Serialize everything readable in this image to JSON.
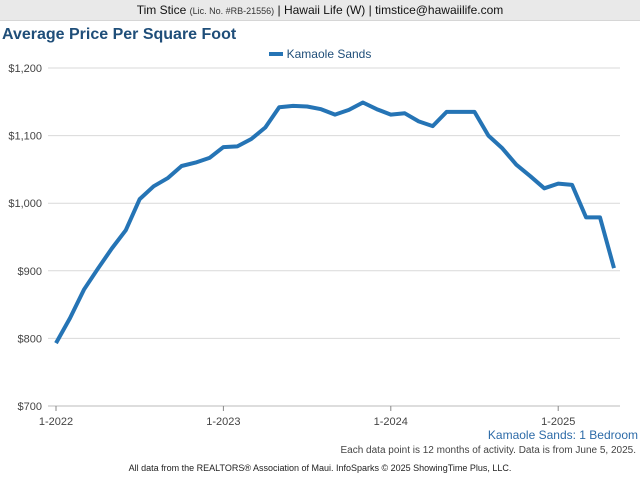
{
  "header": {
    "agent": "Tim Stice",
    "license": "(Lic. No. #RB-21556)",
    "rest": "| Hawaii Life (W) | timstice@hawaiilife.com"
  },
  "title": "Average Price Per Square Foot",
  "subtitle": "Kamaole Sands: 1 Bedroom",
  "note": "Each data point is 12 months of activity. Data is from June 5, 2025.",
  "footer": "All data from the REALTORS® Association of Maui. InfoSparks © 2025 ShowingTime Plus, LLC.",
  "colors": {
    "series": "#2574b5",
    "title": "#1f4e79"
  },
  "chart_data": {
    "type": "line",
    "title": "Average Price Per Square Foot",
    "xlabel": "",
    "ylabel": "",
    "ylim": [
      700,
      1200
    ],
    "yticks": [
      700,
      800,
      900,
      1000,
      1100,
      1200
    ],
    "ytick_labels": [
      "$700",
      "$800",
      "$900",
      "$1,000",
      "$1,100",
      "$1,200"
    ],
    "xticks": [
      "2022-01",
      "2023-01",
      "2024-01",
      "2025-01"
    ],
    "xtick_labels": [
      "1-2022",
      "1-2023",
      "1-2024",
      "1-2025"
    ],
    "grid": "horizontal",
    "legend": "top-center",
    "series": [
      {
        "name": "Kamaole Sands",
        "color": "#2574b5",
        "x": [
          "2022-01",
          "2022-02",
          "2022-03",
          "2022-04",
          "2022-05",
          "2022-06",
          "2022-07",
          "2022-08",
          "2022-09",
          "2022-10",
          "2022-11",
          "2022-12",
          "2023-01",
          "2023-02",
          "2023-03",
          "2023-04",
          "2023-05",
          "2023-06",
          "2023-07",
          "2023-08",
          "2023-09",
          "2023-10",
          "2023-11",
          "2023-12",
          "2024-01",
          "2024-02",
          "2024-03",
          "2024-04",
          "2024-05",
          "2024-06",
          "2024-07",
          "2024-08",
          "2024-09",
          "2024-10",
          "2024-11",
          "2024-12",
          "2025-01",
          "2025-02",
          "2025-03",
          "2025-04",
          "2025-05"
        ],
        "values": [
          793,
          830,
          872,
          903,
          933,
          960,
          1006,
          1025,
          1037,
          1055,
          1060,
          1067,
          1083,
          1084,
          1095,
          1112,
          1142,
          1144,
          1143,
          1139,
          1131,
          1138,
          1149,
          1139,
          1131,
          1133,
          1121,
          1114,
          1135,
          1135,
          1135,
          1100,
          1081,
          1057,
          1040,
          1022,
          1029,
          1027,
          979,
          979,
          904
        ]
      }
    ]
  }
}
